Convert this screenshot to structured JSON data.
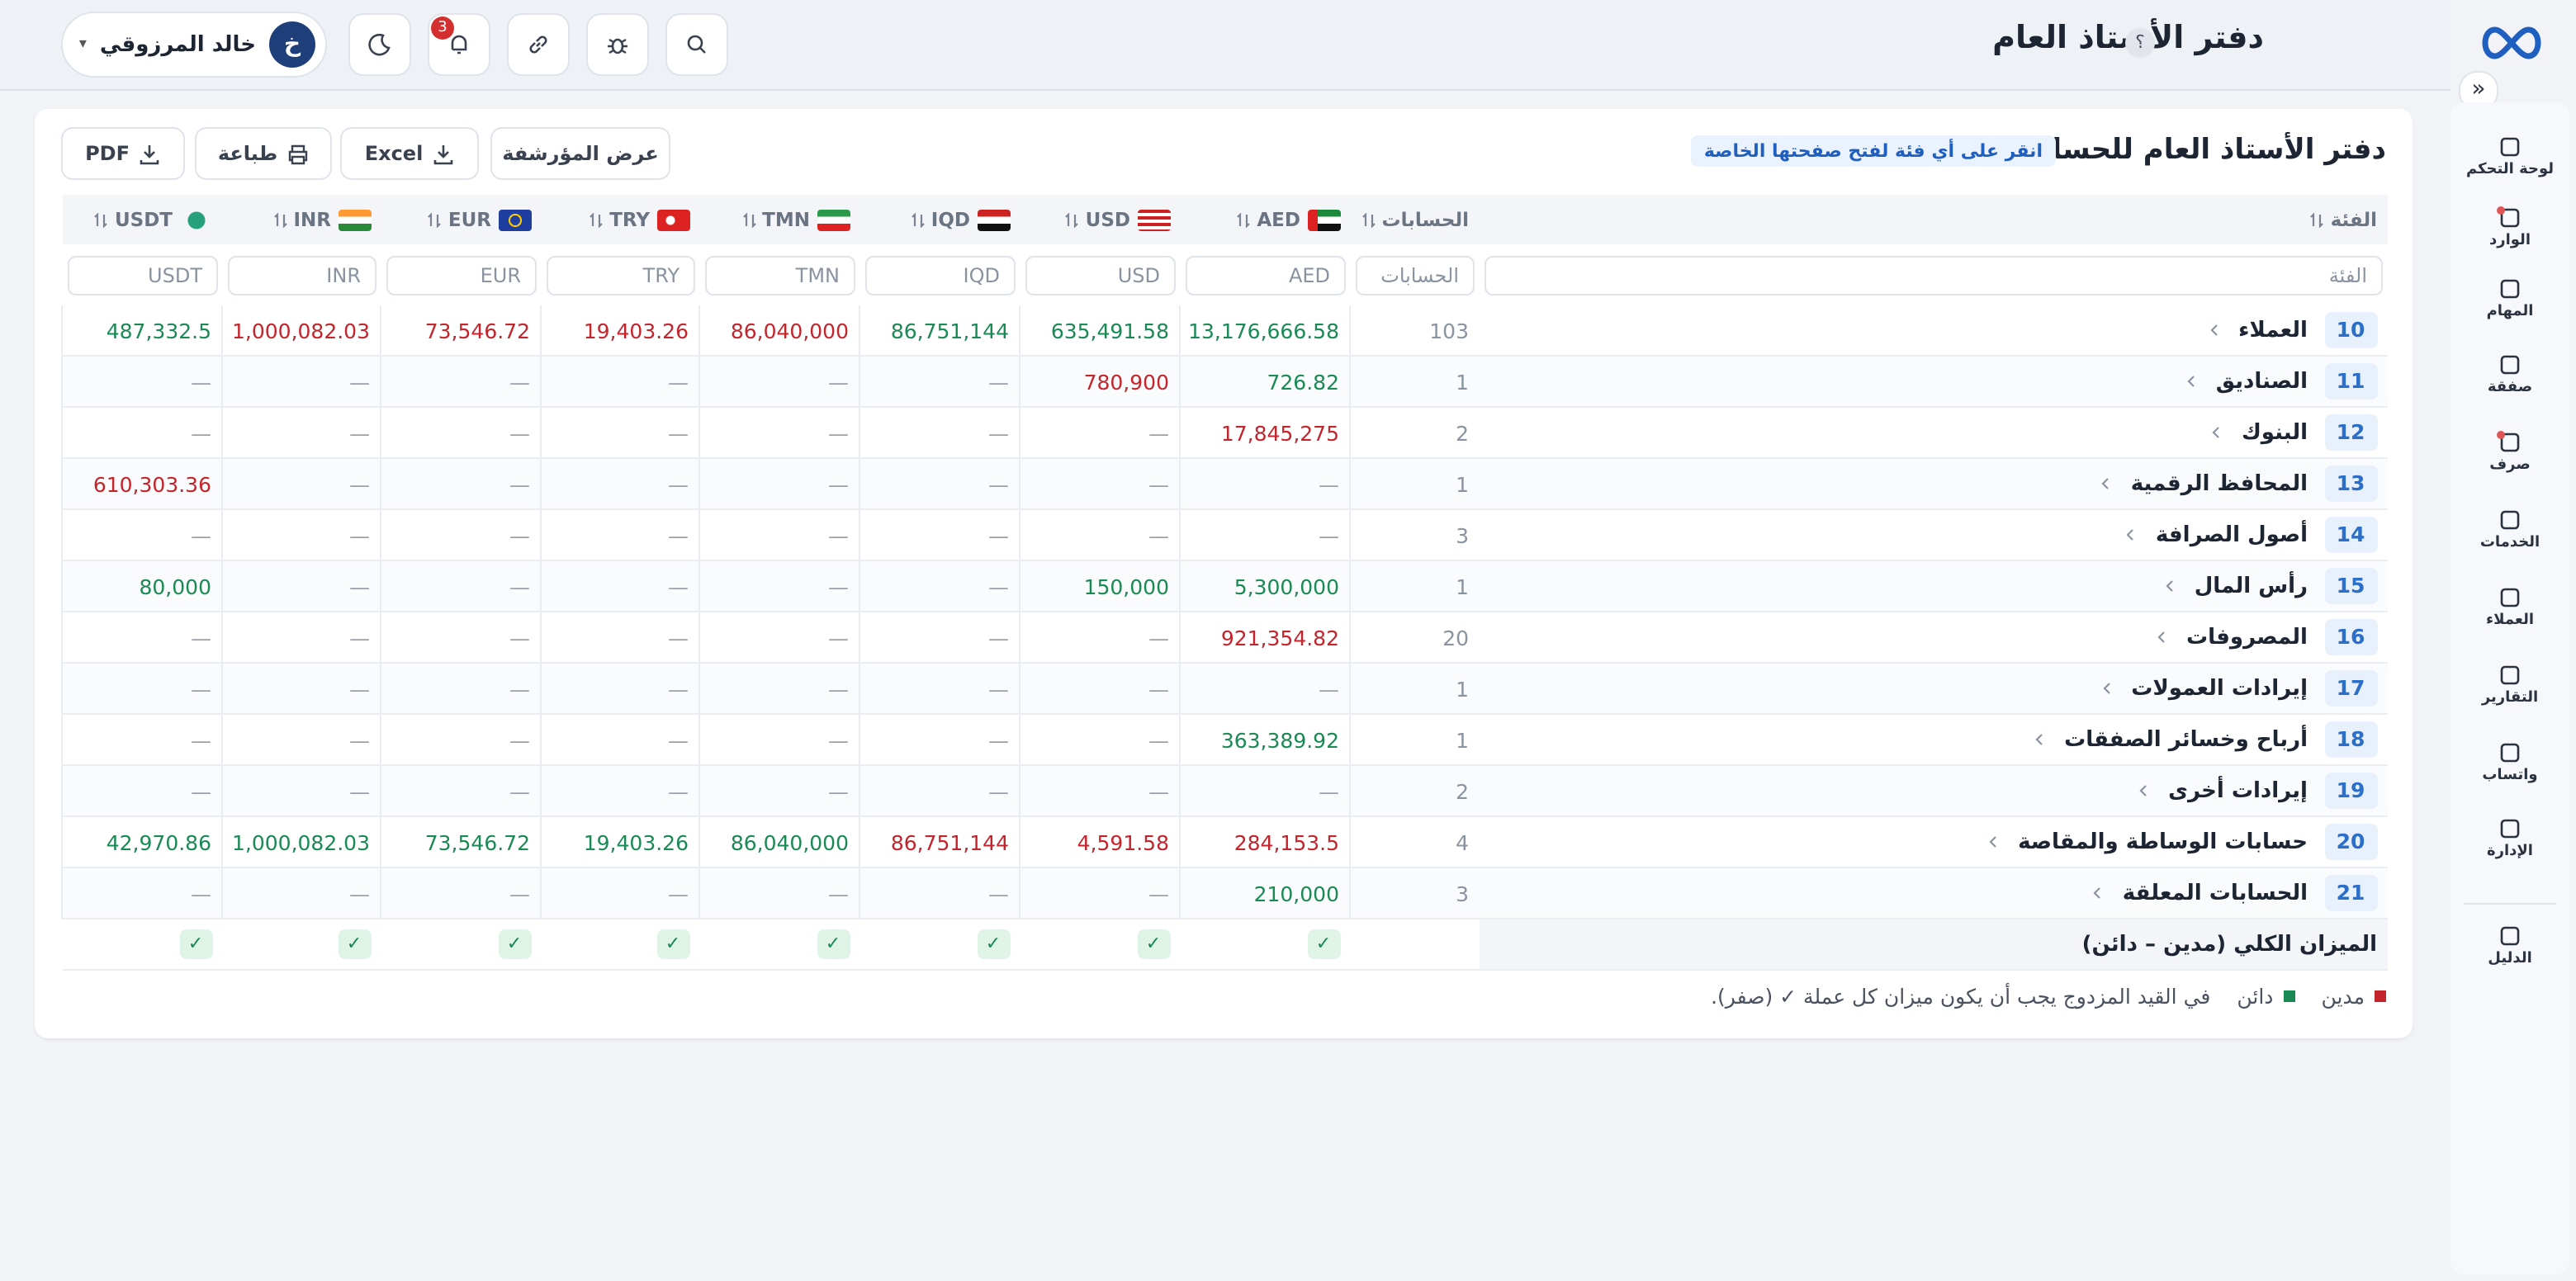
{
  "header": {
    "title": "دفتر الأستاذ العام",
    "help": "؟",
    "user": {
      "initial": "خ",
      "name": "خالد المرزوقي",
      "caret": "▾"
    },
    "notifications": 3
  },
  "sidebar": {
    "toggle": "»",
    "items": [
      {
        "label": "لوحة التحكم",
        "dot": false
      },
      {
        "label": "الوارد",
        "dot": true
      },
      {
        "label": "المهام",
        "dot": false
      },
      {
        "label": "صفقة",
        "dot": false
      },
      {
        "label": "صرف",
        "dot": true
      },
      {
        "label": "الخدمات",
        "dot": false
      },
      {
        "label": "العملاء",
        "dot": false
      },
      {
        "label": "التقارير",
        "dot": false
      },
      {
        "label": "واتساب",
        "dot": false
      },
      {
        "label": "الإدارة",
        "dot": false
      }
    ],
    "footer": "الدليل"
  },
  "ledger": {
    "title": "دفتر الأستاذ العام للحسابات",
    "hint": "انقر على أي فئة لفتح صفحتها الخاصة",
    "buttons": [
      "عرض المؤرشفة",
      "Excel",
      "طباعة",
      "PDF"
    ],
    "columns": [
      "الفئة",
      "الحسابات",
      "AED",
      "USD",
      "IQD",
      "TMN",
      "TRY",
      "EUR",
      "INR",
      "USDT"
    ],
    "rows": [
      {
        "code": 10,
        "name": "العملاء",
        "accounts": 103,
        "values": [
          "13,176,666.58",
          "635,491.58",
          "86,751,144",
          "86,040,000",
          "19,403.26",
          "73,546.72",
          "1,000,082.03",
          "487,332.5"
        ],
        "colors": [
          "#1a8a55",
          "#1a8a55",
          "#1a8a55",
          "#c4242b",
          "#c4242b",
          "#c4242b",
          "#c4242b",
          "#1a8a55"
        ]
      },
      {
        "code": 11,
        "name": "الصناديق",
        "accounts": 1,
        "values": [
          "726.82",
          "780,900",
          "—",
          "—",
          "—",
          "—",
          "—",
          "—"
        ],
        "colors": [
          "#1a8a55",
          "#c4242b",
          "#9aa1ab",
          "#9aa1ab",
          "#9aa1ab",
          "#9aa1ab",
          "#9aa1ab",
          "#9aa1ab"
        ]
      },
      {
        "code": 12,
        "name": "البنوك",
        "accounts": 2,
        "values": [
          "17,845,275",
          "—",
          "—",
          "—",
          "—",
          "—",
          "—",
          "—"
        ],
        "colors": [
          "#c4242b",
          "#9aa1ab",
          "#9aa1ab",
          "#9aa1ab",
          "#9aa1ab",
          "#9aa1ab",
          "#9aa1ab",
          "#9aa1ab"
        ]
      },
      {
        "code": 13,
        "name": "المحافظ الرقمية",
        "accounts": 1,
        "values": [
          "—",
          "—",
          "—",
          "—",
          "—",
          "—",
          "—",
          "610,303.36"
        ],
        "colors": [
          "#9aa1ab",
          "#9aa1ab",
          "#9aa1ab",
          "#9aa1ab",
          "#9aa1ab",
          "#9aa1ab",
          "#9aa1ab",
          "#c4242b"
        ]
      },
      {
        "code": 14,
        "name": "أصول الصرافة",
        "accounts": 3,
        "values": [
          "—",
          "—",
          "—",
          "—",
          "—",
          "—",
          "—",
          "—"
        ],
        "colors": [
          "#9aa1ab",
          "#9aa1ab",
          "#9aa1ab",
          "#9aa1ab",
          "#9aa1ab",
          "#9aa1ab",
          "#9aa1ab",
          "#9aa1ab"
        ]
      },
      {
        "code": 15,
        "name": "رأس المال",
        "accounts": 1,
        "values": [
          "5,300,000",
          "150,000",
          "—",
          "—",
          "—",
          "—",
          "—",
          "80,000"
        ],
        "colors": [
          "#1a8a55",
          "#1a8a55",
          "#9aa1ab",
          "#9aa1ab",
          "#9aa1ab",
          "#9aa1ab",
          "#9aa1ab",
          "#1a8a55"
        ]
      },
      {
        "code": 16,
        "name": "المصروفات",
        "accounts": 20,
        "values": [
          "921,354.82",
          "—",
          "—",
          "—",
          "—",
          "—",
          "—",
          "—"
        ],
        "colors": [
          "#c4242b",
          "#9aa1ab",
          "#9aa1ab",
          "#9aa1ab",
          "#9aa1ab",
          "#9aa1ab",
          "#9aa1ab",
          "#9aa1ab"
        ]
      },
      {
        "code": 17,
        "name": "إيرادات العمولات",
        "accounts": 1,
        "values": [
          "—",
          "—",
          "—",
          "—",
          "—",
          "—",
          "—",
          "—"
        ],
        "colors": [
          "#9aa1ab",
          "#9aa1ab",
          "#9aa1ab",
          "#9aa1ab",
          "#9aa1ab",
          "#9aa1ab",
          "#9aa1ab",
          "#9aa1ab"
        ]
      },
      {
        "code": 18,
        "name": "أرباح وخسائر الصفقات",
        "accounts": 1,
        "values": [
          "363,389.92",
          "—",
          "—",
          "—",
          "—",
          "—",
          "—",
          "—"
        ],
        "colors": [
          "#1a8a55",
          "#9aa1ab",
          "#9aa1ab",
          "#9aa1ab",
          "#9aa1ab",
          "#9aa1ab",
          "#9aa1ab",
          "#9aa1ab"
        ]
      },
      {
        "code": 19,
        "name": "إيرادات أخرى",
        "accounts": 2,
        "values": [
          "—",
          "—",
          "—",
          "—",
          "—",
          "—",
          "—",
          "—"
        ],
        "colors": [
          "#9aa1ab",
          "#9aa1ab",
          "#9aa1ab",
          "#9aa1ab",
          "#9aa1ab",
          "#9aa1ab",
          "#9aa1ab",
          "#9aa1ab"
        ]
      },
      {
        "code": 20,
        "name": "حسابات الوساطة والمقاصة",
        "accounts": 4,
        "values": [
          "284,153.5",
          "4,591.58",
          "86,751,144",
          "86,040,000",
          "19,403.26",
          "73,546.72",
          "1,000,082.03",
          "42,970.86"
        ],
        "colors": [
          "#c4242b",
          "#c4242b",
          "#c4242b",
          "#1a8a55",
          "#1a8a55",
          "#1a8a55",
          "#1a8a55",
          "#1a8a55"
        ]
      },
      {
        "code": 21,
        "name": "الحسابات المعلقة",
        "accounts": 3,
        "values": [
          "210,000",
          "—",
          "—",
          "—",
          "—",
          "—",
          "—",
          "—"
        ],
        "colors": [
          "#1a8a55",
          "#9aa1ab",
          "#9aa1ab",
          "#9aa1ab",
          "#9aa1ab",
          "#9aa1ab",
          "#9aa1ab",
          "#9aa1ab"
        ]
      }
    ],
    "balance": {
      "label": "الميزان الكلي (مدين – دائن)",
      "checks": [
        "✓",
        "✓",
        "✓",
        "✓",
        "✓",
        "✓",
        "✓",
        "✓"
      ]
    },
    "legend": [
      {
        "label": "مدين",
        "color": "#c4242b"
      },
      {
        "label": "دائن",
        "color": "#1a8a55"
      }
    ],
    "note": "في القيد المزدوج يجب أن يكون ميزان كل عملة ✓ (صفر)."
  }
}
